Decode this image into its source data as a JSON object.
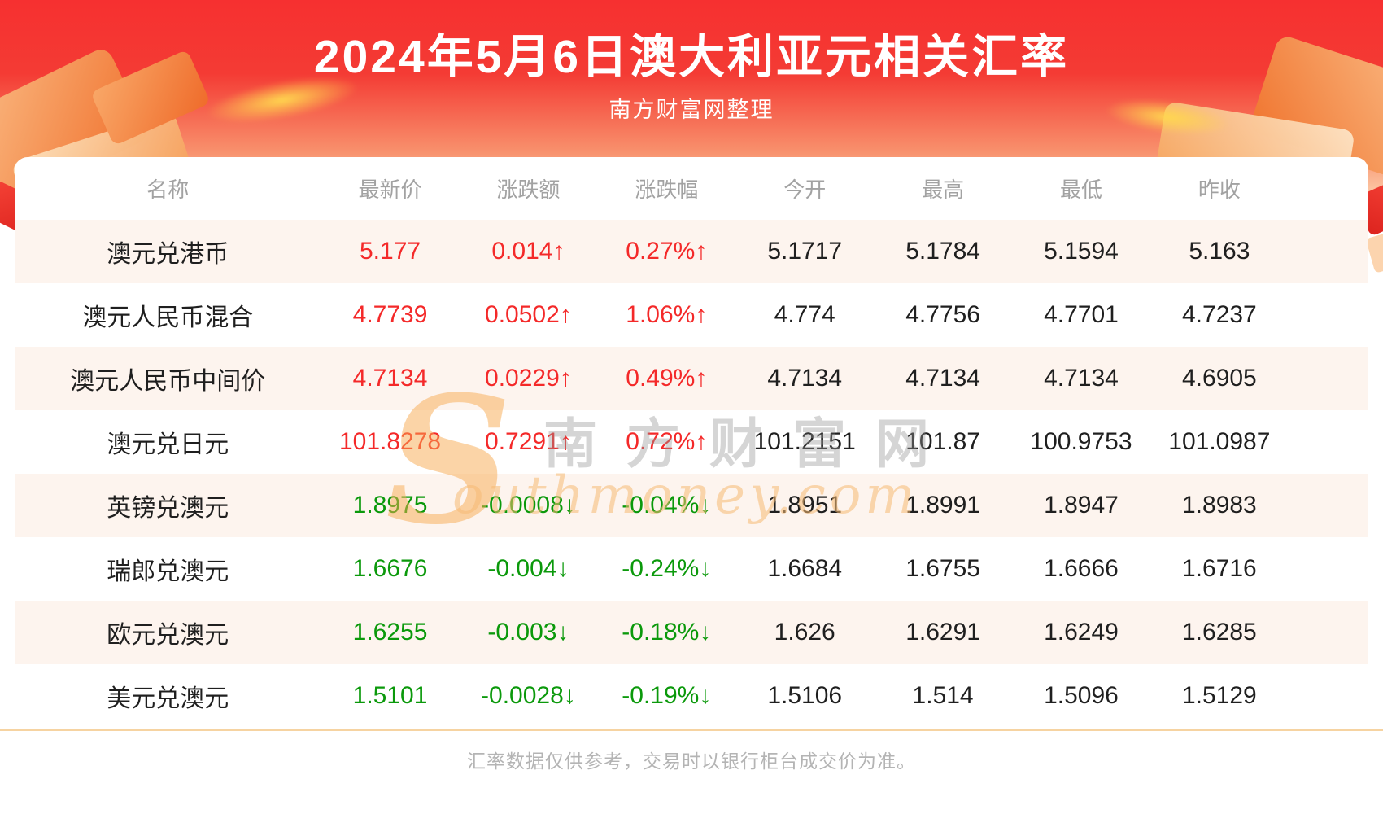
{
  "header": {
    "title": "2024年5月6日澳大利亚元相关汇率",
    "subtitle": "南方财富网整理"
  },
  "watermark": {
    "s_glyph": "S",
    "cn_text": "南方财富网",
    "en_text": "outhmoney.com"
  },
  "colors": {
    "banner_red_top": "#f63030",
    "banner_peach_bottom": "#fcc9a6",
    "up": "#f42929",
    "down": "#0b990b",
    "row_alt": "#fdf4ee",
    "header_text": "#a2a2a2",
    "cell_text": "#1f1f1f",
    "divider": "#f6d3a1",
    "footer_text": "#b4b4b4"
  },
  "table": {
    "columns": [
      "名称",
      "最新价",
      "涨跌额",
      "涨跌幅",
      "今开",
      "最高",
      "最低",
      "昨收"
    ],
    "rows": [
      {
        "name": "澳元兑港币",
        "direction": "up",
        "values": [
          "5.177",
          "0.014↑",
          "0.27%↑",
          "5.1717",
          "5.1784",
          "5.1594",
          "5.163"
        ]
      },
      {
        "name": "澳元人民币混合",
        "direction": "up",
        "values": [
          "4.7739",
          "0.0502↑",
          "1.06%↑",
          "4.774",
          "4.7756",
          "4.7701",
          "4.7237"
        ]
      },
      {
        "name": "澳元人民币中间价",
        "direction": "up",
        "values": [
          "4.7134",
          "0.0229↑",
          "0.49%↑",
          "4.7134",
          "4.7134",
          "4.7134",
          "4.6905"
        ]
      },
      {
        "name": "澳元兑日元",
        "direction": "up",
        "values": [
          "101.8278",
          "0.7291↑",
          "0.72%↑",
          "101.2151",
          "101.87",
          "100.9753",
          "101.0987"
        ]
      },
      {
        "name": "英镑兑澳元",
        "direction": "down",
        "values": [
          "1.8975",
          "-0.0008↓",
          "-0.04%↓",
          "1.8951",
          "1.8991",
          "1.8947",
          "1.8983"
        ]
      },
      {
        "name": "瑞郎兑澳元",
        "direction": "down",
        "values": [
          "1.6676",
          "-0.004↓",
          "-0.24%↓",
          "1.6684",
          "1.6755",
          "1.6666",
          "1.6716"
        ]
      },
      {
        "name": "欧元兑澳元",
        "direction": "down",
        "values": [
          "1.6255",
          "-0.003↓",
          "-0.18%↓",
          "1.626",
          "1.6291",
          "1.6249",
          "1.6285"
        ]
      },
      {
        "name": "美元兑澳元",
        "direction": "down",
        "values": [
          "1.5101",
          "-0.0028↓",
          "-0.19%↓",
          "1.5106",
          "1.514",
          "1.5096",
          "1.5129"
        ]
      }
    ]
  },
  "footer": {
    "note": "汇率数据仅供参考，交易时以银行柜台成交价为准。"
  },
  "chart_data": {
    "type": "table",
    "title": "2024年5月6日澳大利亚元相关汇率",
    "source_note": "南方财富网整理",
    "columns": [
      "名称",
      "最新价",
      "涨跌额",
      "涨跌幅",
      "今开",
      "最高",
      "最低",
      "昨收"
    ],
    "rows": [
      [
        "澳元兑港币",
        5.177,
        0.014,
        "0.27%",
        5.1717,
        5.1784,
        5.1594,
        5.163
      ],
      [
        "澳元人民币混合",
        4.7739,
        0.0502,
        "1.06%",
        4.774,
        4.7756,
        4.7701,
        4.7237
      ],
      [
        "澳元人民币中间价",
        4.7134,
        0.0229,
        "0.49%",
        4.7134,
        4.7134,
        4.7134,
        4.6905
      ],
      [
        "澳元兑日元",
        101.8278,
        0.7291,
        "0.72%",
        101.2151,
        101.87,
        100.9753,
        101.0987
      ],
      [
        "英镑兑澳元",
        1.8975,
        -0.0008,
        "-0.04%",
        1.8951,
        1.8991,
        1.8947,
        1.8983
      ],
      [
        "瑞郎兑澳元",
        1.6676,
        -0.004,
        "-0.24%",
        1.6684,
        1.6755,
        1.6666,
        1.6716
      ],
      [
        "欧元兑澳元",
        1.6255,
        -0.003,
        "-0.18%",
        1.626,
        1.6291,
        1.6249,
        1.6285
      ],
      [
        "美元兑澳元",
        1.5101,
        -0.0028,
        "-0.19%",
        1.5106,
        1.514,
        1.5096,
        1.5129
      ]
    ]
  }
}
